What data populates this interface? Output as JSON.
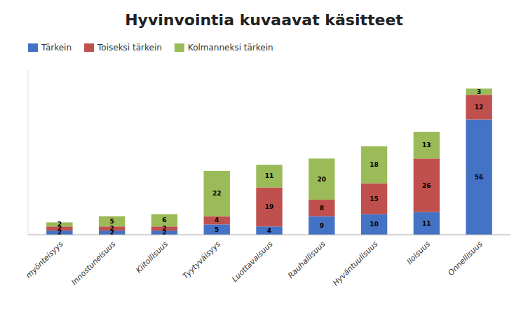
{
  "chart_data": {
    "type": "bar",
    "stacked": true,
    "title": "Hyvinvointia kuvaavat käsitteet",
    "categories": [
      "myönteisyys",
      "Innostuneisuus",
      "Kiitollisuus",
      "Tyytyväisyys",
      "Luottavaisuus",
      "Rauhallisuus",
      "Hyväntuulisuus",
      "Iloisuus",
      "Onnellisuus"
    ],
    "series": [
      {
        "name": "Tärkein",
        "color": "#4472C4",
        "values": [
          2,
          2,
          2,
          5,
          4,
          9,
          10,
          11,
          56
        ]
      },
      {
        "name": "Toiseksi tärkein",
        "color": "#C0504D",
        "values": [
          2,
          2,
          2,
          4,
          19,
          8,
          15,
          26,
          12
        ]
      },
      {
        "name": "Kolmanneksi tärkein",
        "color": "#9BBB59",
        "values": [
          2,
          5,
          6,
          22,
          11,
          20,
          18,
          13,
          3
        ]
      }
    ],
    "ylim": [
      0,
      80
    ],
    "data_labels": true,
    "tick_labels": "x",
    "legend": "upper left",
    "grid": false
  }
}
